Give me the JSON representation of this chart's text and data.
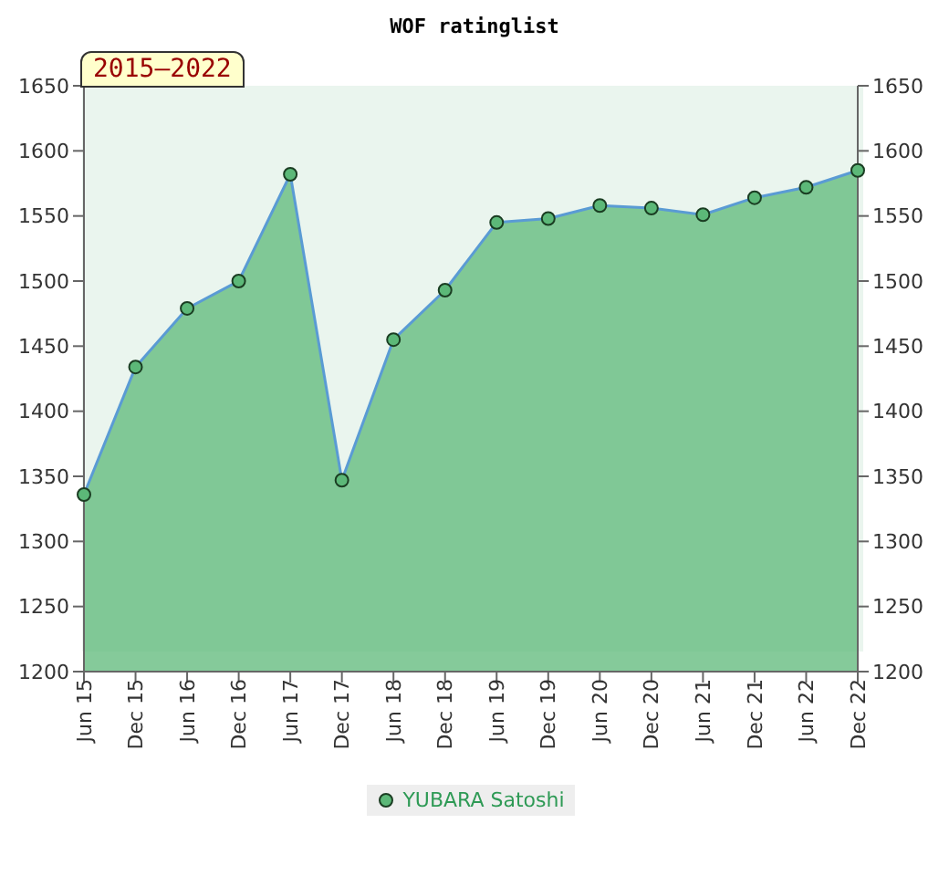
{
  "chart_data": {
    "type": "area",
    "title": "WOF ratinglist",
    "annotations": [
      "2015–2022"
    ],
    "categories": [
      "Jun 15",
      "Dec 15",
      "Jun 16",
      "Dec 16",
      "Jun 17",
      "Dec 17",
      "Jun 18",
      "Dec 18",
      "Jun 19",
      "Dec 19",
      "Jun 20",
      "Dec 20",
      "Jun 21",
      "Dec 21",
      "Jun 22",
      "Dec 22"
    ],
    "series": [
      {
        "name": "YUBARA Satoshi",
        "color": "#5cb878",
        "values": [
          1336,
          1434,
          1479,
          1500,
          1582,
          1347,
          1455,
          1493,
          1545,
          1548,
          1558,
          1556,
          1551,
          1564,
          1572,
          1585
        ]
      }
    ],
    "ylim": [
      1200,
      1650
    ],
    "yticks": [
      1200,
      1250,
      1300,
      1350,
      1400,
      1450,
      1500,
      1550,
      1600,
      1650
    ],
    "y2lim": [
      1200,
      1650
    ],
    "y2ticks": [
      1200,
      1250,
      1300,
      1350,
      1400,
      1450,
      1500,
      1550,
      1600,
      1650
    ],
    "marker": "circle",
    "legend": "bottom"
  }
}
